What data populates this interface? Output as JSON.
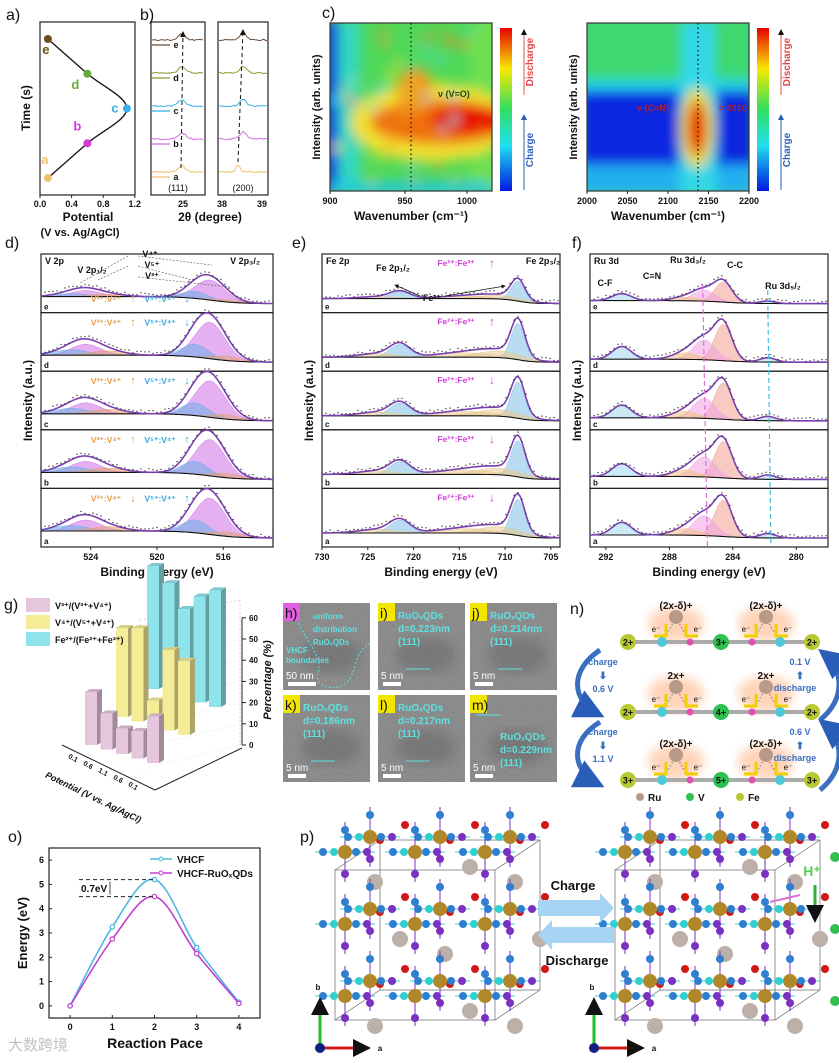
{
  "panel_labels": {
    "a": "a)",
    "b": "b)",
    "c": "c)",
    "d": "d)",
    "e": "e)",
    "f": "f)",
    "g": "g)",
    "h": "h)",
    "i": "i)",
    "j": "j)",
    "k": "k)",
    "l": "l)",
    "m": "m)",
    "n": "n)",
    "o": "o)",
    "p": "p)"
  },
  "colors": {
    "a": "#f0c070",
    "b": "#d63ad6",
    "c": "#38b0e8",
    "d": "#6aa83a",
    "e": "#6b4e1a",
    "envelope": "#7a3fb0",
    "tem_text": "#5fe0e0",
    "tag": "#f2e600",
    "tag_h": "#e060e0"
  },
  "chart_data": [
    {
      "panel": "a",
      "type": "line",
      "xlabel": "Potential",
      "xlabel_unit": "(V vs. Ag/AgCl)",
      "ylabel": "Time (s)",
      "xlim": [
        0,
        1.2
      ],
      "xticks": [
        "0.0",
        "0.4",
        "0.8",
        "1.2"
      ],
      "points": [
        {
          "label": "a",
          "potential": 0.1,
          "time_order": 0
        },
        {
          "label": "b",
          "potential": 0.6,
          "time_order": 1
        },
        {
          "label": "c",
          "potential": 1.1,
          "time_order": 2
        },
        {
          "label": "d",
          "potential": 0.6,
          "time_order": 3
        },
        {
          "label": "e",
          "potential": 0.1,
          "time_order": 4
        }
      ]
    },
    {
      "panel": "b",
      "type": "line",
      "xlabel": "2θ (degree)",
      "subplots": [
        {
          "reflection": "(111)",
          "xticks": [
            "25"
          ]
        },
        {
          "reflection": "(200)",
          "xticks": [
            "38",
            "39"
          ]
        }
      ],
      "traces": [
        "a",
        "b",
        "c",
        "d",
        "e"
      ]
    },
    {
      "panel": "c-left",
      "type": "heatmap",
      "xlabel": "Wavenumber (cm⁻¹)",
      "ylabel": "Intensity (arb. units)",
      "xlim": [
        900,
        1020
      ],
      "xticks": [
        "900",
        "950",
        "1000"
      ],
      "annotation": "ν (V=O)",
      "colorbar_top": "Discharge",
      "colorbar_bottom": "Charge"
    },
    {
      "panel": "c-right",
      "type": "heatmap",
      "xlabel": "Wavenumber (cm⁻¹)",
      "ylabel": "Intensity (arb. units)",
      "xlim": [
        2000,
        2200
      ],
      "xticks": [
        "2000",
        "2050",
        "2100",
        "2150",
        "2200"
      ],
      "annotation": "ν (C≡N)",
      "annotation2": "≈ 2010",
      "colorbar_top": "Discharge",
      "colorbar_bottom": "Charge"
    },
    {
      "panel": "d",
      "type": "line",
      "xlabel": "Binding energy (eV)",
      "ylabel": "Intensity (a.u.)",
      "xlim": [
        527,
        513
      ],
      "xtick_values": [
        524,
        520,
        516
      ],
      "xticks": [
        "524",
        "520",
        "516"
      ],
      "rows": [
        "e",
        "d",
        "c",
        "b",
        "a"
      ],
      "labels": {
        "core": "V 2p",
        "p12": "V 2p₁/₂",
        "p32": "V 2p₃/₂",
        "v4": "V⁴⁺",
        "v5": "V⁵⁺",
        "v3": "V³⁺"
      },
      "ratio_labels": {
        "r1": "V³⁺:V⁴⁺",
        "r2": "V⁵⁺:V⁴⁺"
      },
      "ratio_arrows": [
        [
          "↑",
          "↓"
        ],
        [
          "↑",
          "↓"
        ],
        [
          "↑",
          "↓"
        ],
        [
          "↑",
          "↑"
        ],
        [
          "↓",
          "↑"
        ]
      ]
    },
    {
      "panel": "e",
      "type": "line",
      "xlabel": "Binding energy (eV)",
      "ylabel": "Intensity (a.u.)",
      "xlim": [
        730,
        703
      ],
      "xtick_values": [
        730,
        725,
        720,
        715,
        710,
        705
      ],
      "xticks": [
        "730",
        "725",
        "720",
        "715",
        "710",
        "705"
      ],
      "rows": [
        "e",
        "d",
        "c",
        "b",
        "a"
      ],
      "labels": {
        "core": "Fe 2p",
        "p12": "Fe 2p₁/₂",
        "p32": "Fe 2p₃/₂",
        "fe2": "Fe²⁺"
      },
      "ratio_label": "Fe²⁺:Fe³⁺",
      "ratio_arrows": [
        "↑",
        "↑",
        "↓",
        "↓",
        "↓"
      ]
    },
    {
      "panel": "f",
      "type": "line",
      "xlabel": "Binding energy (eV)",
      "ylabel": "Intensity (a.u.)",
      "xlim": [
        293,
        278
      ],
      "xtick_values": [
        292,
        288,
        284,
        280
      ],
      "xticks": [
        "292",
        "288",
        "284",
        "280"
      ],
      "rows": [
        "e",
        "d",
        "c",
        "b",
        "a"
      ],
      "labels": {
        "core": "Ru 3d",
        "ru32": "Ru 3d₃/₂",
        "cn": "C≡N",
        "cc": "C-C",
        "cf": "C-F",
        "ru52": "Ru 3d₅/₂"
      }
    },
    {
      "panel": "g",
      "type": "bar",
      "zlabel": "Percentage (%)",
      "xlabel": "Potential (V vs. Ag/AgCl)",
      "zlim": [
        0,
        60
      ],
      "zticks": [
        "0",
        "10",
        "20",
        "30",
        "40",
        "50",
        "60"
      ],
      "categories": [
        "0.1",
        "0.6",
        "1.1",
        "0.6",
        "0.1"
      ],
      "series": [
        {
          "name": "V³⁺/(V³⁺+V⁴⁺)",
          "color": "#e6c6dc",
          "values": [
            25,
            17,
            12,
            13,
            22
          ]
        },
        {
          "name": "V⁴⁺/(V⁵⁺+V⁴⁺)",
          "color": "#f4ec96",
          "values": [
            42,
            44,
            12,
            38,
            35
          ]
        },
        {
          "name": "Fe²⁺/(Fe²⁺+Fe³⁺)",
          "color": "#8fe3ea",
          "values": [
            58,
            52,
            42,
            50,
            55
          ]
        }
      ]
    },
    {
      "panel": "o",
      "type": "line",
      "xlabel": "Reaction Pace",
      "ylabel": "Energy (eV)",
      "xlim": [
        -0.5,
        4.5
      ],
      "ylim": [
        -0.5,
        6.5
      ],
      "xticks": [
        "0",
        "1",
        "2",
        "3",
        "4"
      ],
      "yticks": [
        "0",
        "1",
        "2",
        "3",
        "4",
        "5",
        "6"
      ],
      "x": [
        0,
        1,
        2,
        3,
        4
      ],
      "series": [
        {
          "name": "VHCF",
          "color": "#4fb8e0",
          "values": [
            0,
            3.25,
            5.2,
            2.4,
            0.15
          ]
        },
        {
          "name": "VHCF-RuOₓQDs",
          "color": "#c040d0",
          "values": [
            0,
            2.75,
            4.5,
            2.15,
            0.1
          ]
        }
      ],
      "annotation": "0.7eV"
    }
  ],
  "tem": [
    {
      "tag": "h)",
      "lines": [
        "uniform",
        "distribution",
        "RuOₓQDs"
      ],
      "lines2": [
        "VHCF",
        "boundaries"
      ],
      "scale": "50 nm"
    },
    {
      "tag": "i)",
      "lines": [
        "RuOₓQDs",
        "d=0.223nm",
        "(111)"
      ],
      "scale": "5 nm"
    },
    {
      "tag": "j)",
      "lines": [
        "RuOₓQDs",
        "d=0.214nm",
        "(111)"
      ],
      "scale": "5 nm"
    },
    {
      "tag": "k)",
      "lines": [
        "RuOₓQDs",
        "d=0.186nm",
        "(111)"
      ],
      "scale": "5 nm"
    },
    {
      "tag": "l)",
      "lines": [
        "RuOₓQDs",
        "d=0.217nm",
        "(111)"
      ],
      "scale": "5 nm"
    },
    {
      "tag": "m)",
      "lines": [
        "RuOₓQDs",
        "d=0.229nm",
        "(111)"
      ],
      "scale": "5 nm"
    }
  ],
  "mechanism": {
    "chains": [
      {
        "ru": "(2x-δ)+",
        "fe_left": "2+",
        "v": "3+",
        "fe_right": "2+"
      },
      {
        "ru": "2x+",
        "fe_left": "2+",
        "v": "4+",
        "fe_right": "2+"
      },
      {
        "ru": "(2x-δ)+",
        "fe_left": "3+",
        "v": "5+",
        "fe_right": "3+"
      }
    ],
    "electron": "e⁻",
    "left_steps": [
      {
        "action": "charge",
        "voltage": "0.6 V"
      },
      {
        "action": "charge",
        "voltage": "1.1 V"
      }
    ],
    "right_steps": [
      {
        "action": "discharge",
        "voltage": "0.1 V"
      },
      {
        "action": "discharge",
        "voltage": "0.6 V"
      }
    ],
    "legend": [
      {
        "label": "Ru",
        "color": "#b89a88"
      },
      {
        "label": "V",
        "color": "#30c050"
      },
      {
        "label": "Fe",
        "color": "#b8c830"
      }
    ]
  },
  "structure": {
    "charge": "Charge",
    "discharge": "Discharge",
    "proton": "H⁺",
    "axis_a": "a",
    "axis_b": "b"
  },
  "watermark": "大数跨境"
}
